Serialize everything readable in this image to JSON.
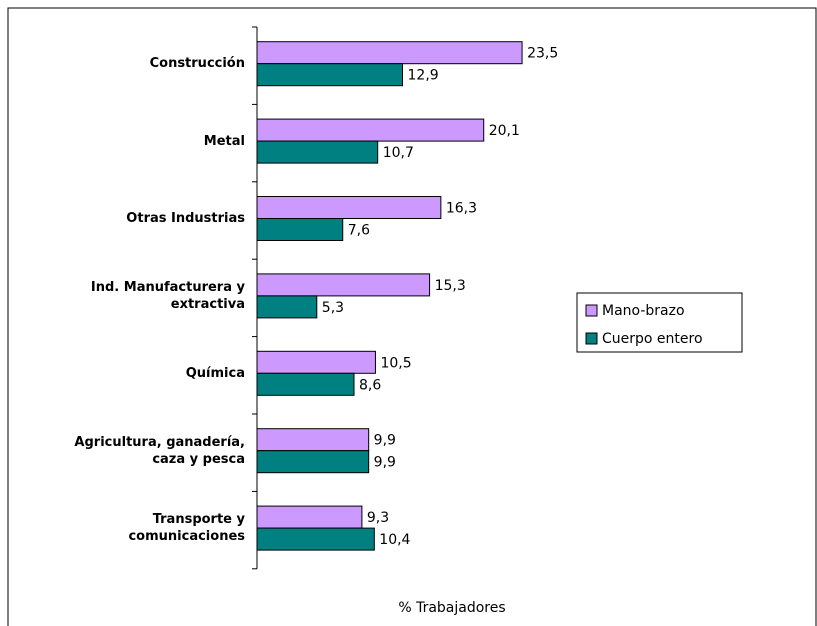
{
  "chart_data": {
    "type": "bar",
    "orientation": "horizontal",
    "categories": [
      "Construcción",
      "Metal",
      "Otras Industrias",
      "Ind. Manufacturera y extractiva",
      "Química",
      "Agricultura, ganadería, caza y pesca",
      "Transporte y comunicaciones"
    ],
    "series": [
      {
        "name": "Mano-brazo",
        "color": "#cc99ff",
        "values": [
          23.5,
          20.1,
          16.3,
          15.3,
          10.5,
          9.9,
          9.3
        ],
        "value_labels": [
          "23,5",
          "20,1",
          "16,3",
          "15,3",
          "10,5",
          "9,9",
          "9,3"
        ]
      },
      {
        "name": "Cuerpo entero",
        "color": "#008080",
        "values": [
          12.9,
          10.7,
          7.6,
          5.3,
          8.6,
          9.9,
          10.4
        ],
        "value_labels": [
          "12,9",
          "10,7",
          "7,6",
          "5,3",
          "8,6",
          "9,9",
          "10,4"
        ]
      }
    ],
    "xlabel": "% Trabajadores",
    "legend": "right"
  }
}
